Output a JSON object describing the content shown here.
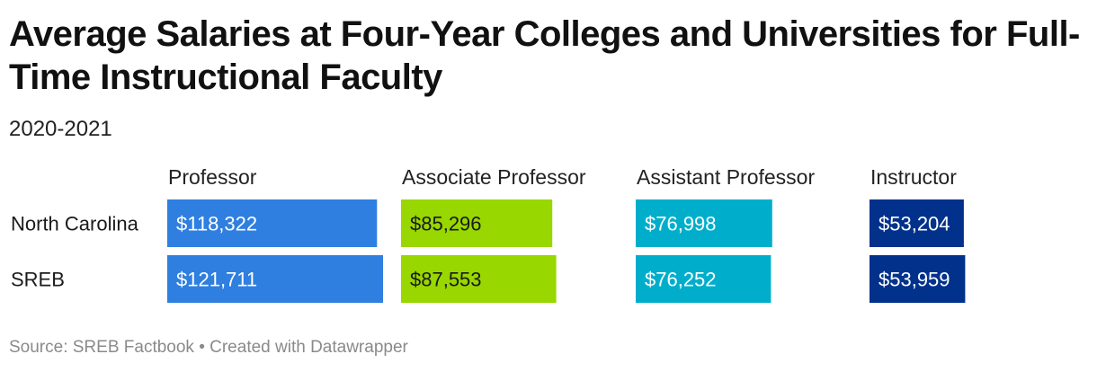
{
  "title": "Average Salaries at Four-Year Colleges and Universities for Full-Time Instructional Faculty",
  "subtitle": "2020-2021",
  "source": "Source: SREB Factbook • Created with Datawrapper",
  "chart_data": {
    "type": "bar",
    "layout": "small-multiples",
    "categories": [
      "North Carolina",
      "SREB"
    ],
    "series": [
      {
        "name": "Professor",
        "color": "#2f7fe0",
        "text_color": "#ffffff",
        "values": [
          118322,
          121711
        ],
        "labels": [
          "$118,322",
          "$121,711"
        ]
      },
      {
        "name": "Associate Professor",
        "color": "#98d700",
        "text_color": "#1a1a1a",
        "values": [
          85296,
          87553
        ],
        "labels": [
          "$85,296",
          "$87,553"
        ]
      },
      {
        "name": "Assistant Professor",
        "color": "#00aecb",
        "text_color": "#ffffff",
        "values": [
          76998,
          76252
        ],
        "labels": [
          "$76,998",
          "$76,252"
        ]
      },
      {
        "name": "Instructor",
        "color": "#02318c",
        "text_color": "#ffffff",
        "values": [
          53204,
          53959
        ],
        "labels": [
          "$53,204",
          "$53,959"
        ]
      }
    ],
    "xlim": [
      0,
      121711
    ],
    "grid": false,
    "legend": "none"
  }
}
